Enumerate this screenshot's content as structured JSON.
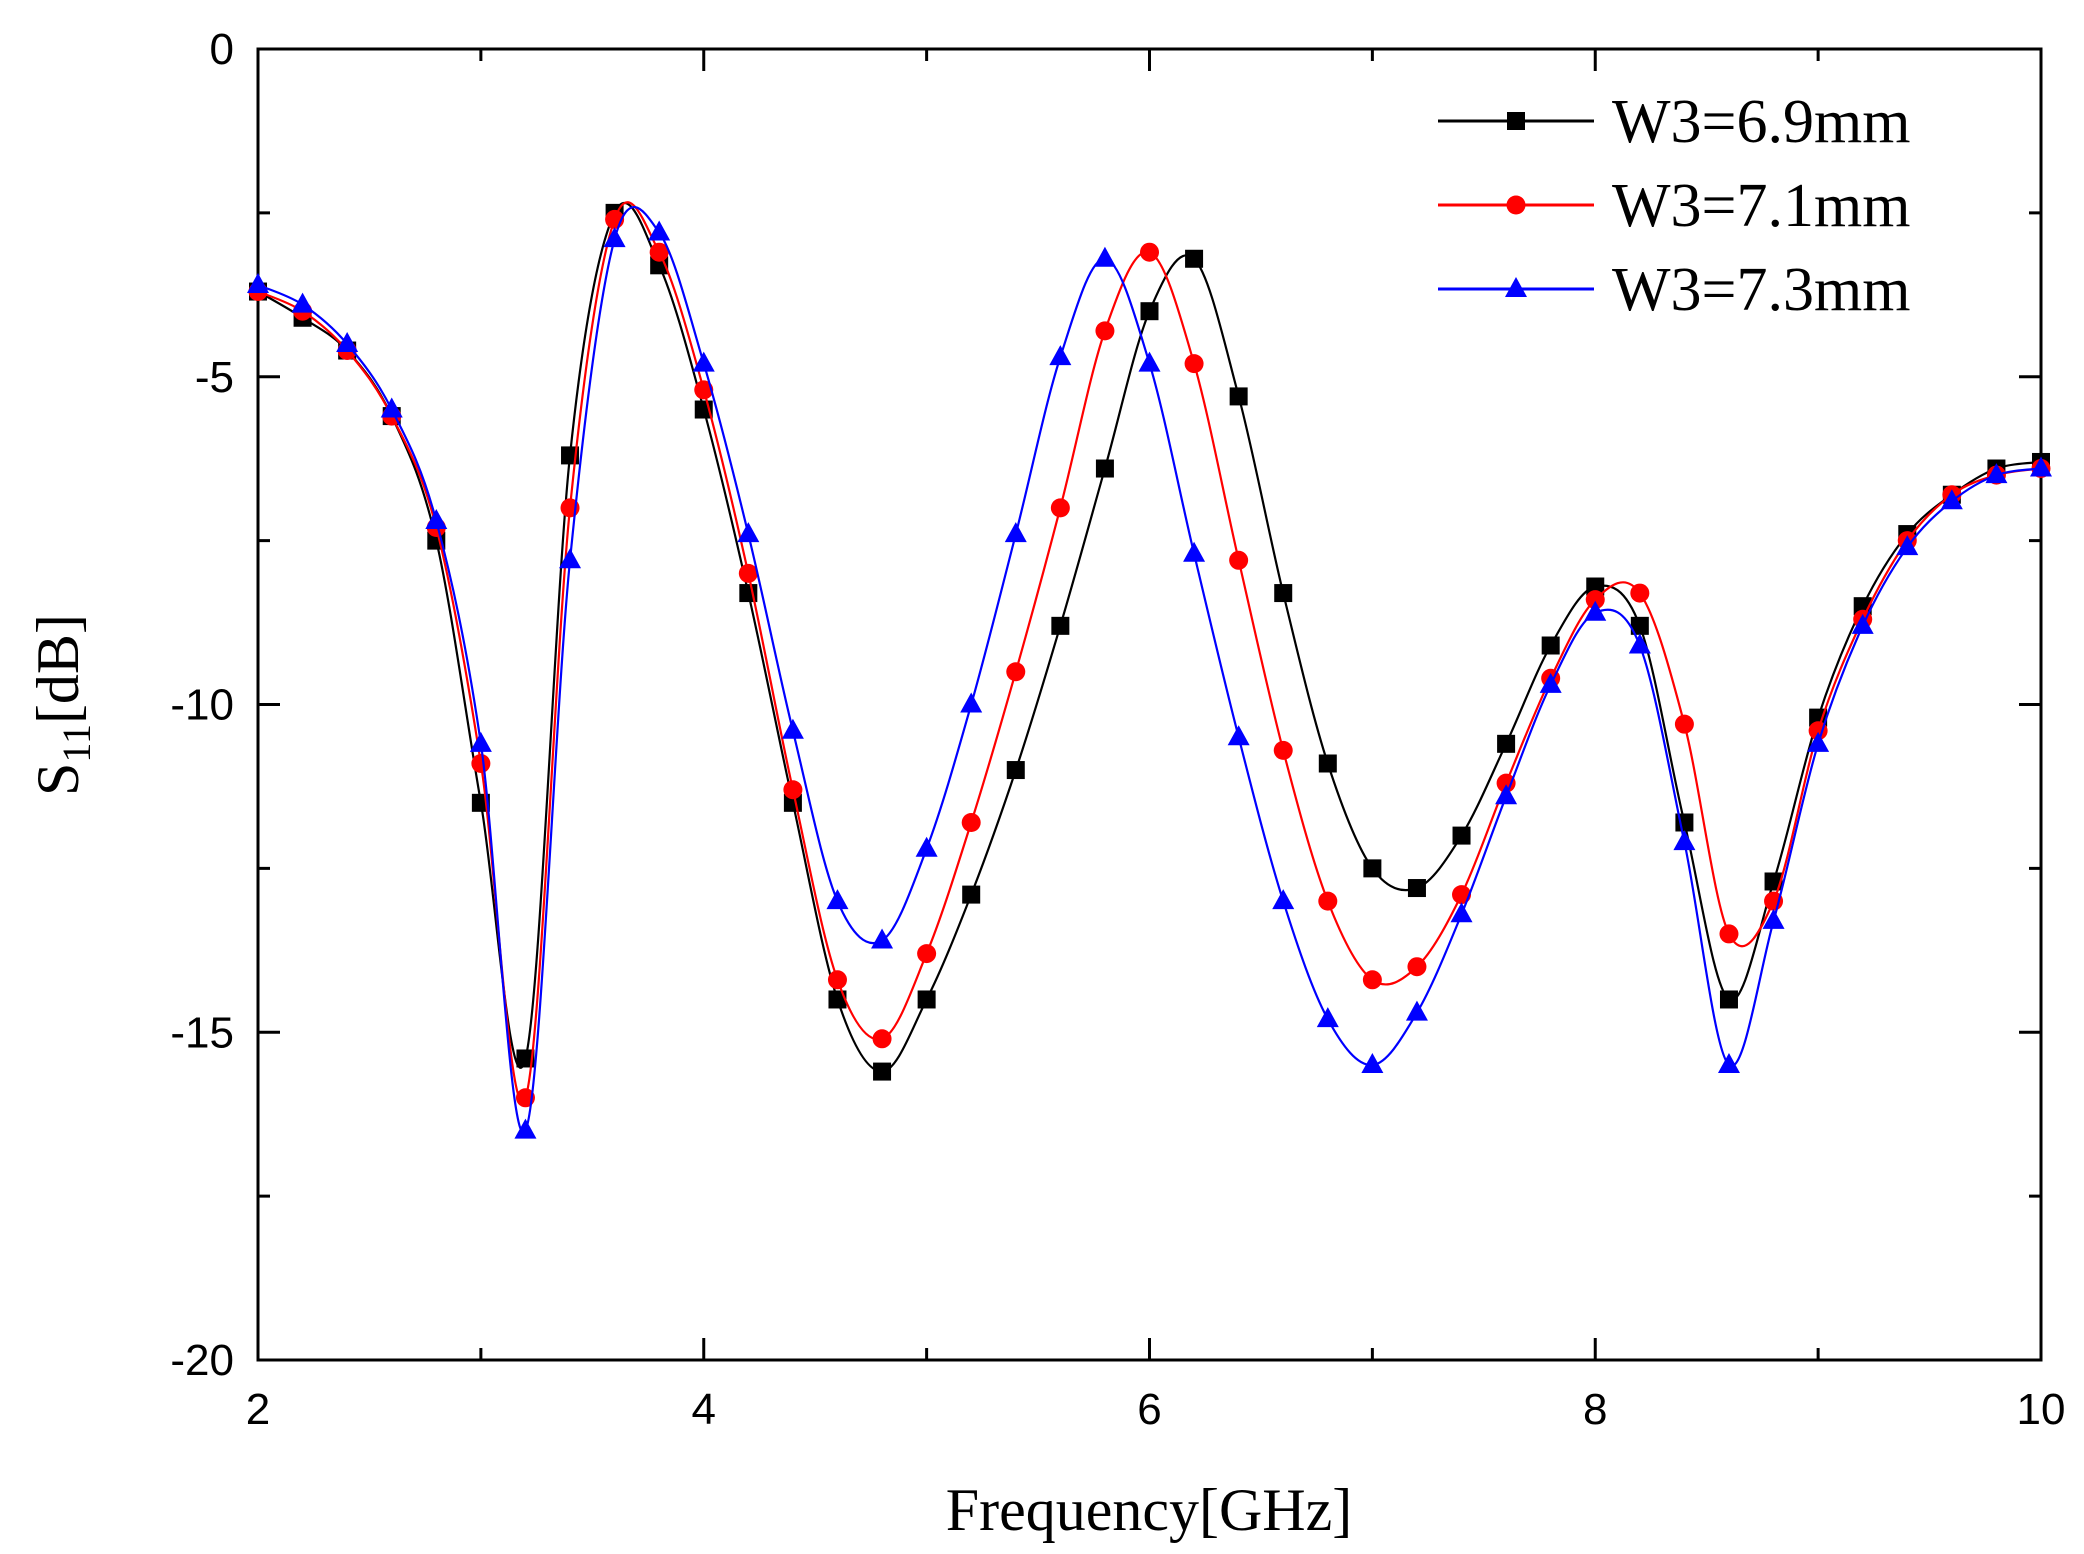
{
  "chart_data": {
    "type": "line",
    "title": "",
    "xlabel": "Frequency[GHz]",
    "ylabel": {
      "main": "S",
      "sub": "11",
      "unit": "[dB]"
    },
    "xlim": [
      2,
      10
    ],
    "ylim": [
      -20,
      0
    ],
    "x_ticks": [
      2,
      4,
      6,
      8,
      10
    ],
    "y_ticks": [
      0,
      -5,
      -10,
      -15,
      -20
    ],
    "grid": false,
    "legend_position": "top-right",
    "x": [
      2.0,
      2.2,
      2.4,
      2.6,
      2.8,
      3.0,
      3.2,
      3.4,
      3.6,
      3.8,
      4.0,
      4.2,
      4.4,
      4.6,
      4.8,
      5.0,
      5.2,
      5.4,
      5.6,
      5.8,
      6.0,
      6.2,
      6.4,
      6.6,
      6.8,
      7.0,
      7.2,
      7.4,
      7.6,
      7.8,
      8.0,
      8.2,
      8.4,
      8.6,
      8.8,
      9.0,
      9.2,
      9.4,
      9.6,
      9.8,
      10.0
    ],
    "series": [
      {
        "name": "W3=6.9mm",
        "color": "#000000",
        "marker": "square",
        "values": [
          -3.7,
          -4.1,
          -4.6,
          -5.6,
          -7.5,
          -11.5,
          -15.4,
          -6.2,
          -2.5,
          -3.3,
          -5.5,
          -8.3,
          -11.5,
          -14.5,
          -15.6,
          -14.5,
          -12.9,
          -11.0,
          -8.8,
          -6.4,
          -4.0,
          -3.2,
          -5.3,
          -8.3,
          -10.9,
          -12.5,
          -12.8,
          -12.0,
          -10.6,
          -9.1,
          -8.2,
          -8.8,
          -11.8,
          -14.5,
          -12.7,
          -10.2,
          -8.5,
          -7.4,
          -6.8,
          -6.4,
          -6.3
        ]
      },
      {
        "name": "W3=7.1mm",
        "color": "#ff0000",
        "marker": "circle",
        "values": [
          -3.7,
          -4.0,
          -4.6,
          -5.6,
          -7.3,
          -10.9,
          -16.0,
          -7.0,
          -2.6,
          -3.1,
          -5.2,
          -8.0,
          -11.3,
          -14.2,
          -15.1,
          -13.8,
          -11.8,
          -9.5,
          -7.0,
          -4.3,
          -3.1,
          -4.8,
          -7.8,
          -10.7,
          -13.0,
          -14.2,
          -14.0,
          -12.9,
          -11.2,
          -9.6,
          -8.4,
          -8.3,
          -10.3,
          -13.5,
          -13.0,
          -10.4,
          -8.7,
          -7.5,
          -6.8,
          -6.5,
          -6.4
        ]
      },
      {
        "name": "W3=7.3mm",
        "color": "#0000ff",
        "marker": "triangle",
        "values": [
          -3.6,
          -3.9,
          -4.5,
          -5.5,
          -7.2,
          -10.6,
          -16.5,
          -7.8,
          -2.9,
          -2.8,
          -4.8,
          -7.4,
          -10.4,
          -13.0,
          -13.6,
          -12.2,
          -10.0,
          -7.4,
          -4.7,
          -3.2,
          -4.8,
          -7.7,
          -10.5,
          -13.0,
          -14.8,
          -15.5,
          -14.7,
          -13.2,
          -11.4,
          -9.7,
          -8.6,
          -9.1,
          -12.1,
          -15.5,
          -13.3,
          -10.6,
          -8.8,
          -7.6,
          -6.9,
          -6.5,
          -6.4
        ]
      }
    ]
  }
}
